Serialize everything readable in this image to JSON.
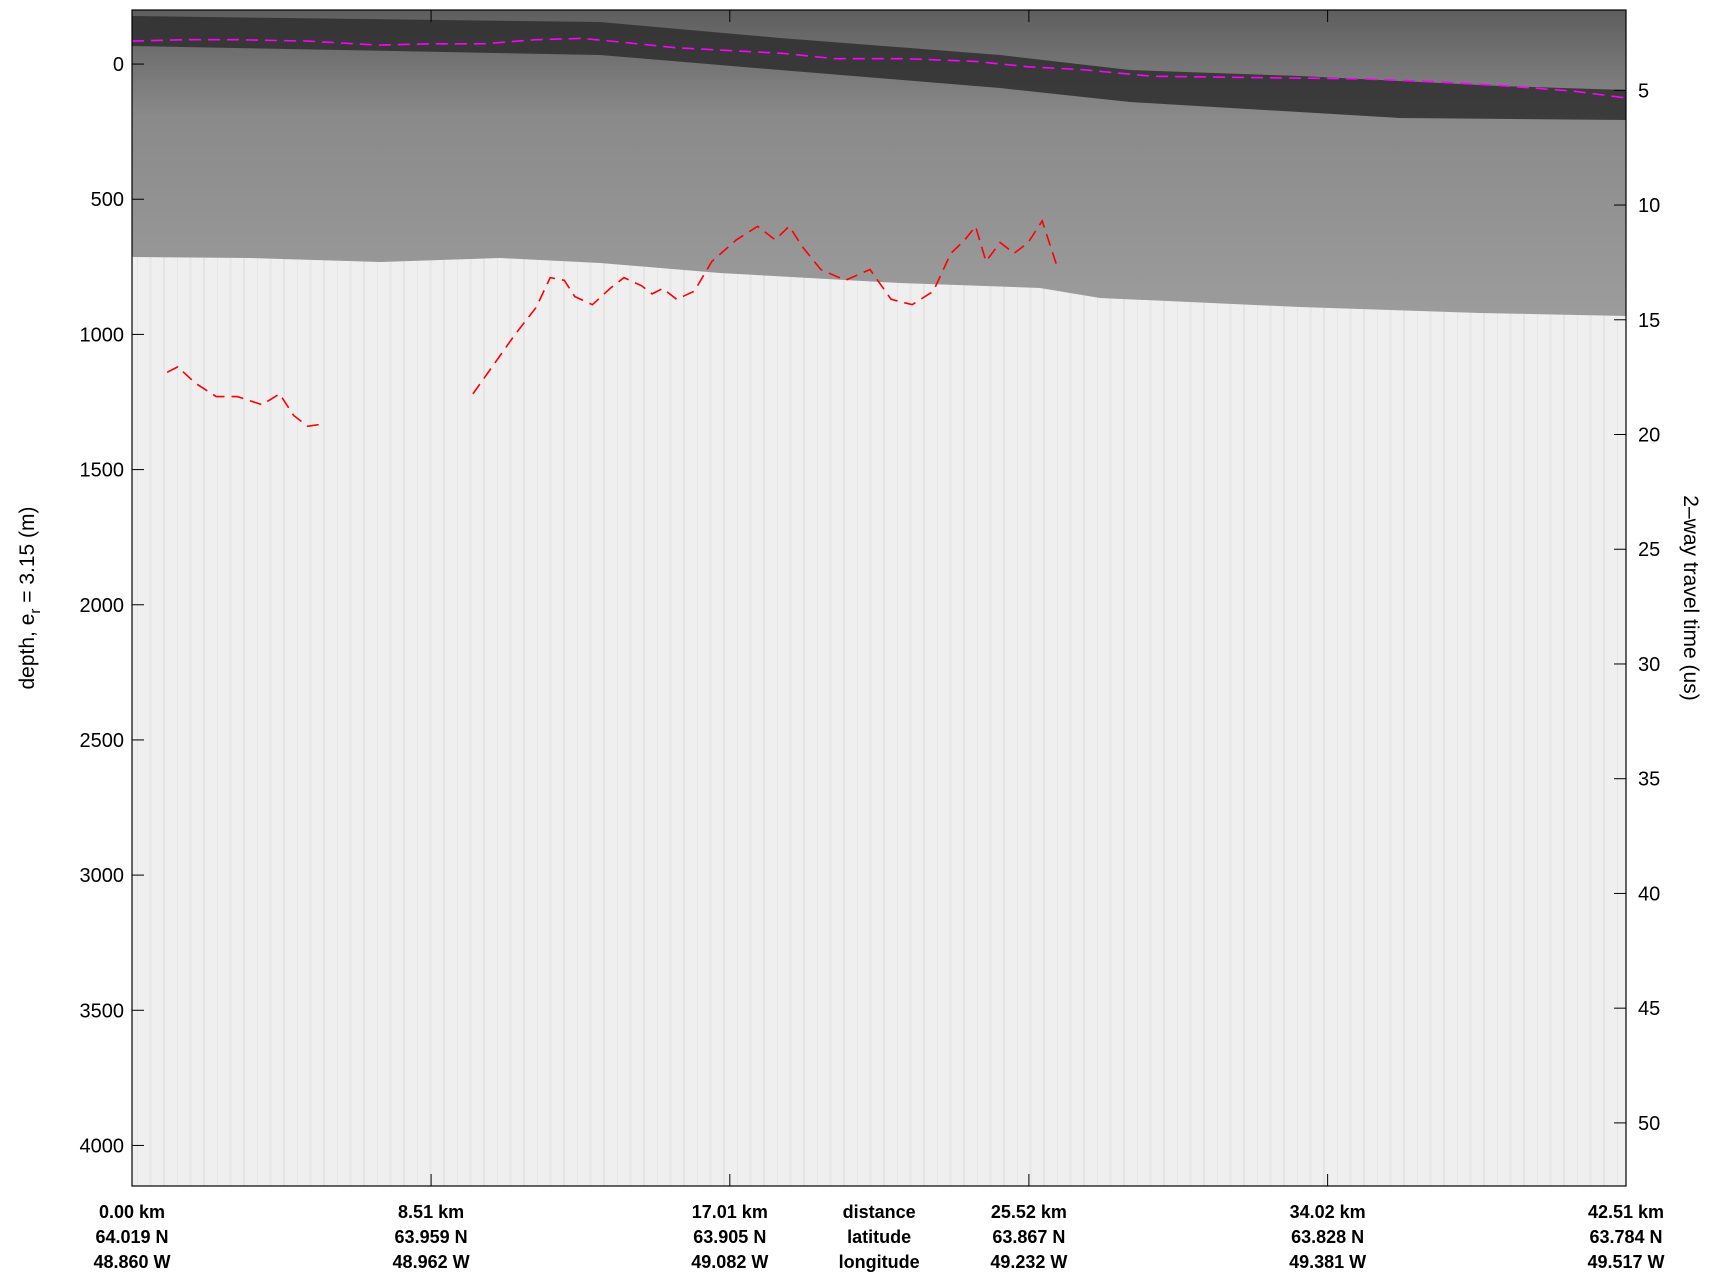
{
  "chart_data": {
    "type": "line",
    "title": "",
    "ylabel_left_base": "depth, e",
    "ylabel_left_sub": "r",
    "ylabel_left_rest": " = 3.15 (m)",
    "ylabel_right": "2–way travel time (us)",
    "left_axis": {
      "ylim": [
        -200,
        4150
      ],
      "inverted": true,
      "ticks": [
        0,
        500,
        1000,
        1500,
        2000,
        2500,
        3000,
        3500,
        4000
      ]
    },
    "right_axis": {
      "ylim": [
        1.5,
        52.75
      ],
      "inverted": true,
      "ticks": [
        5,
        10,
        15,
        20,
        25,
        30,
        35,
        40,
        45,
        50
      ]
    },
    "x_axis": {
      "unit": "km",
      "xlim": [
        0,
        42.51
      ],
      "ticks": [
        {
          "x": 0.0,
          "distance": "0.00 km",
          "latitude": "64.019 N",
          "longitude": "48.860 W"
        },
        {
          "x": 8.51,
          "distance": "8.51 km",
          "latitude": "63.959 N",
          "longitude": "48.962 W"
        },
        {
          "x": 17.01,
          "distance": "17.01 km",
          "latitude": "63.905 N",
          "longitude": "49.082 W"
        },
        {
          "x": 25.52,
          "distance": "25.52 km",
          "latitude": "63.867 N",
          "longitude": "49.232 W"
        },
        {
          "x": 34.02,
          "distance": "34.02 km",
          "latitude": "63.828 N",
          "longitude": "49.381 W"
        },
        {
          "x": 42.51,
          "distance": "42.51 km",
          "latitude": "63.784 N",
          "longitude": "49.517 W"
        }
      ],
      "row_labels": {
        "distance": "distance",
        "latitude": "latitude",
        "longitude": "longitude",
        "x": 21.26
      }
    },
    "series": [
      {
        "color": "#ff00ff",
        "style": "dashed",
        "x": [
          0,
          1.5,
          3,
          5,
          7,
          8.5,
          10,
          11.5,
          12.8,
          14,
          15.5,
          17,
          18.5,
          20,
          22,
          24,
          25.5,
          27,
          29,
          32,
          35,
          37,
          39,
          41,
          42.51
        ],
        "y": [
          -85,
          -90,
          -90,
          -85,
          -70,
          -75,
          -75,
          -90,
          -95,
          -80,
          -60,
          -50,
          -40,
          -20,
          -20,
          -10,
          10,
          20,
          45,
          50,
          55,
          65,
          80,
          100,
          125
        ]
      },
      {
        "color": "#ff0000",
        "style": "dashed",
        "x": [
          1.0,
          1.3,
          1.8,
          2.4,
          3.0,
          3.7,
          4.2,
          4.6,
          5.0,
          5.5
        ],
        "y": [
          1140,
          1120,
          1180,
          1230,
          1230,
          1260,
          1220,
          1300,
          1340,
          1330
        ]
      },
      {
        "color": "#ff0000",
        "style": "dashed",
        "x": [
          9.7,
          10.3,
          10.9,
          11.5,
          11.9,
          12.3,
          12.6,
          13.1,
          13.6,
          14.0,
          14.5,
          14.8,
          15.1,
          15.5,
          16.0,
          16.5,
          17.2,
          17.8,
          18.3,
          18.7,
          19.1,
          19.6,
          20.3,
          21.0,
          21.6,
          22.2,
          22.8,
          23.3,
          23.7,
          24.0,
          24.3,
          24.7,
          25.1,
          25.5,
          25.9,
          26.3
        ],
        "y": [
          1220,
          1110,
          1000,
          900,
          790,
          800,
          860,
          890,
          830,
          790,
          820,
          850,
          830,
          870,
          840,
          730,
          650,
          600,
          650,
          600,
          680,
          760,
          800,
          760,
          870,
          890,
          840,
          700,
          650,
          600,
          730,
          660,
          700,
          660,
          580,
          740
        ]
      }
    ]
  }
}
